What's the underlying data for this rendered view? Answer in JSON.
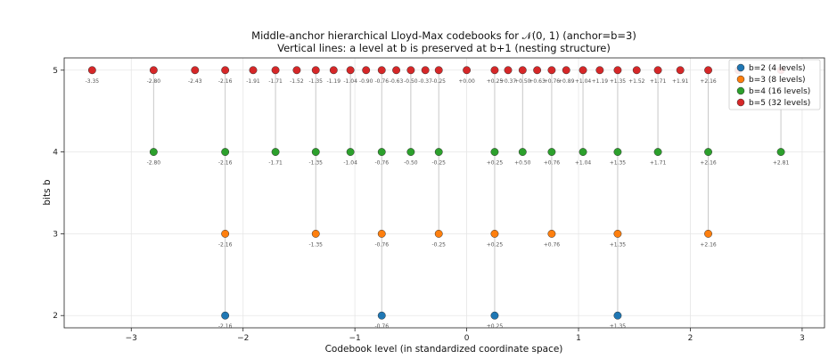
{
  "chart_data": {
    "type": "scatter",
    "title": "Middle-anchor hierarchical Lloyd-Max codebooks for 𝒩(0, 1) (anchor=b=3)",
    "subtitle": "Vertical lines: a level at b is preserved at b+1 (nesting structure)",
    "xlabel": "Codebook level (in standardized coordinate space)",
    "ylabel": "bits b",
    "xlim": [
      -3.6,
      3.2
    ],
    "ylim": [
      1.85,
      5.15
    ],
    "x_ticks": [
      -3,
      -2,
      -1,
      0,
      1,
      2,
      3
    ],
    "x_tick_labels": [
      "−3",
      "−2",
      "−1",
      "0",
      "1",
      "2",
      "3"
    ],
    "y_ticks": [
      2,
      3,
      4,
      5
    ],
    "y_tick_labels": [
      "2",
      "3",
      "4",
      "5"
    ],
    "grid": true,
    "legend_position": "top-right",
    "series": [
      {
        "name": "b=2 (4 levels)",
        "color": "#1f77b4",
        "y": 2,
        "x": [
          -2.16,
          -0.76,
          0.25,
          1.35
        ],
        "labels": [
          "-2.16",
          "-0.76",
          "+0.25",
          "+1.35"
        ]
      },
      {
        "name": "b=3 (8 levels)",
        "color": "#ff7f0e",
        "y": 3,
        "x": [
          -2.16,
          -1.35,
          -0.76,
          -0.25,
          0.25,
          0.76,
          1.35,
          2.16
        ],
        "labels": [
          "-2.16",
          "-1.35",
          "-0.76",
          "-0.25",
          "+0.25",
          "+0.76",
          "+1.35",
          "+2.16"
        ]
      },
      {
        "name": "b=4 (16 levels)",
        "color": "#2ca02c",
        "y": 4,
        "x": [
          -2.8,
          -2.16,
          -1.71,
          -1.35,
          -1.04,
          -0.76,
          -0.5,
          -0.25,
          0.25,
          0.5,
          0.76,
          1.04,
          1.35,
          1.71,
          2.16,
          2.81
        ],
        "labels": [
          "-2.80",
          "-2.16",
          "-1.71",
          "-1.35",
          "-1.04",
          "-0.76",
          "-0.50",
          "-0.25",
          "+0.25",
          "+0.50",
          "+0.76",
          "+1.04",
          "+1.35",
          "+1.71",
          "+2.16",
          "+2.81"
        ]
      },
      {
        "name": "b=5 (32 levels)",
        "color": "#d62728",
        "y": 5,
        "x": [
          -3.35,
          -2.8,
          -2.43,
          -2.16,
          -1.91,
          -1.71,
          -1.52,
          -1.35,
          -1.19,
          -1.04,
          -0.9,
          -0.76,
          -0.63,
          -0.5,
          -0.37,
          -0.25,
          0.0,
          0.25,
          0.37,
          0.5,
          0.63,
          0.76,
          0.89,
          1.04,
          1.19,
          1.35,
          1.52,
          1.71,
          1.91,
          2.16,
          2.43,
          2.81
        ],
        "labels": [
          "-3.35",
          "-2.80",
          "-2.43",
          "-2.16",
          "-1.91",
          "-1.71",
          "-1.52",
          "-1.35",
          "-1.19",
          "-1.04",
          "-0.90",
          "-0.76",
          "-0.63",
          "-0.50",
          "-0.37",
          "-0.25",
          "+0.00",
          "+0.25",
          "+0.37",
          "+0.50",
          "+0.63",
          "+0.76",
          "+0.89",
          "+1.04",
          "+1.19",
          "+1.35",
          "+1.52",
          "+1.71",
          "+1.91",
          "+2.16",
          "",
          ""
        ]
      }
    ]
  }
}
